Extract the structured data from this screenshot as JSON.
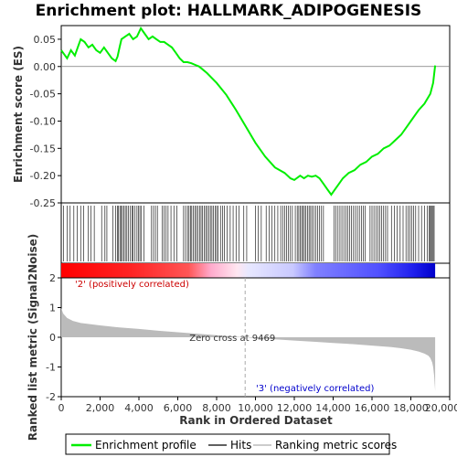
{
  "chart_data": {
    "type": "line",
    "title": "Enrichment plot: HALLMARK_ADIPOGENESIS",
    "upper_panel": {
      "ylabel": "Enrichment score (ES)",
      "ylim": [
        -0.25,
        0.075
      ],
      "yticks": [
        "0.05",
        "0.00",
        "-0.05",
        "-0.10",
        "-0.15",
        "-0.20",
        "-0.25"
      ],
      "ytick_values": [
        0.05,
        0.0,
        -0.05,
        -0.1,
        -0.15,
        -0.2,
        -0.25
      ],
      "series": [
        {
          "name": "Enrichment profile",
          "color": "#00ee00",
          "x": [
            0,
            300,
            500,
            700,
            900,
            1000,
            1200,
            1400,
            1600,
            1800,
            2000,
            2200,
            2400,
            2600,
            2800,
            2900,
            3000,
            3100,
            3300,
            3500,
            3700,
            3900,
            4100,
            4300,
            4500,
            4700,
            4900,
            5100,
            5300,
            5500,
            5700,
            5900,
            6100,
            6300,
            6500,
            6700,
            6900,
            7100,
            7500,
            8000,
            8500,
            9000,
            9500,
            10000,
            10500,
            11000,
            11500,
            11800,
            12000,
            12300,
            12500,
            12700,
            12900,
            13100,
            13300,
            13500,
            13700,
            13900,
            14100,
            14300,
            14500,
            14800,
            15100,
            15400,
            15700,
            16000,
            16300,
            16600,
            16900,
            17200,
            17500,
            17800,
            18100,
            18400,
            18700,
            19000,
            19150,
            19250
          ],
          "y": [
            0.03,
            0.015,
            0.03,
            0.02,
            0.04,
            0.05,
            0.045,
            0.035,
            0.04,
            0.03,
            0.025,
            0.035,
            0.025,
            0.015,
            0.01,
            0.018,
            0.035,
            0.05,
            0.055,
            0.06,
            0.05,
            0.055,
            0.07,
            0.06,
            0.05,
            0.055,
            0.05,
            0.045,
            0.045,
            0.04,
            0.035,
            0.025,
            0.015,
            0.008,
            0.008,
            0.006,
            0.003,
            0.0,
            -0.012,
            -0.03,
            -0.052,
            -0.08,
            -0.11,
            -0.14,
            -0.165,
            -0.185,
            -0.195,
            -0.205,
            -0.208,
            -0.2,
            -0.205,
            -0.2,
            -0.202,
            -0.2,
            -0.205,
            -0.215,
            -0.225,
            -0.235,
            -0.225,
            -0.215,
            -0.205,
            -0.195,
            -0.19,
            -0.18,
            -0.175,
            -0.165,
            -0.16,
            -0.15,
            -0.145,
            -0.135,
            -0.125,
            -0.11,
            -0.095,
            -0.08,
            -0.068,
            -0.05,
            -0.03,
            0.002
          ]
        }
      ]
    },
    "hits_x": [
      120,
      300,
      460,
      650,
      820,
      1000,
      1150,
      1380,
      1520,
      1700,
      2080,
      2250,
      2350,
      2650,
      2800,
      2900,
      2950,
      3020,
      3080,
      3150,
      3220,
      3300,
      3380,
      3450,
      3550,
      3640,
      3700,
      3800,
      3900,
      3980,
      4050,
      4130,
      4250,
      4650,
      4750,
      4850,
      4950,
      5200,
      5300,
      5400,
      5500,
      5650,
      5800,
      5950,
      6300,
      6400,
      6500,
      6580,
      6650,
      6720,
      6800,
      6880,
      6960,
      7040,
      7120,
      7200,
      7280,
      7360,
      7440,
      7520,
      7600,
      7680,
      7760,
      7840,
      7920,
      8000,
      8080,
      8200,
      8300,
      8400,
      8550,
      8700,
      8850,
      9000,
      9150,
      9400,
      9550,
      10000,
      10150,
      10300,
      10550,
      10700,
      10850,
      11000,
      11150,
      11300,
      11400,
      11500,
      11600,
      11700,
      11800,
      11900,
      12050,
      12150,
      12230,
      12300,
      12380,
      12450,
      12520,
      12600,
      12680,
      12760,
      12840,
      12920,
      13000,
      13100,
      13200,
      13300,
      13400,
      13500,
      14050,
      14150,
      14250,
      14350,
      14450,
      14550,
      14650,
      14750,
      14850,
      14950,
      15050,
      15150,
      15250,
      15350,
      15450,
      15550,
      15650,
      15900,
      16000,
      16100,
      16200,
      16300,
      16400,
      16500,
      16600,
      16700,
      16800,
      17000,
      17150,
      17300,
      17450,
      17600,
      17750,
      17850,
      17950,
      18050,
      18150,
      18250,
      18400,
      18550,
      18700,
      18850,
      18950,
      19000,
      19050,
      19100,
      19150,
      19200
    ],
    "ranked_panel": {
      "ylabel": "Ranked list metric (Signal2Noise)",
      "ylim": [
        -2,
        2
      ],
      "yticks": [
        "2",
        "1",
        "0",
        "-1",
        "-2"
      ],
      "ytick_values": [
        2,
        1,
        0,
        -1,
        -2
      ],
      "metric_x": [
        0,
        100,
        300,
        600,
        1000,
        2000,
        3000,
        4000,
        5000,
        6000,
        7000,
        8000,
        9000,
        9469,
        10000,
        11000,
        12000,
        13000,
        14000,
        15000,
        16000,
        17000,
        17500,
        18000,
        18400,
        18700,
        18900,
        19000,
        19100,
        19150,
        19200,
        19250
      ],
      "metric_y": [
        0.98,
        0.8,
        0.65,
        0.55,
        0.48,
        0.4,
        0.33,
        0.28,
        0.22,
        0.17,
        0.12,
        0.07,
        0.02,
        0.0,
        -0.03,
        -0.07,
        -0.11,
        -0.15,
        -0.19,
        -0.23,
        -0.28,
        -0.33,
        -0.37,
        -0.42,
        -0.48,
        -0.55,
        -0.62,
        -0.7,
        -0.85,
        -1.0,
        -1.3,
        -1.8
      ],
      "zero_cross_label": "Zero cross at 9469",
      "zero_cross": 9469,
      "pos_label": "'2' (positively correlated)",
      "neg_label": "'3' (negatively correlated)"
    },
    "xlabel": "Rank in Ordered Dataset",
    "xlim": [
      0,
      20000
    ],
    "xticks": [
      "0",
      "2,000",
      "4,000",
      "6,000",
      "8,000",
      "10,000",
      "12,000",
      "14,000",
      "16,000",
      "18,000",
      "20,000"
    ],
    "xtick_values": [
      0,
      2000,
      4000,
      6000,
      8000,
      10000,
      12000,
      14000,
      16000,
      18000,
      20000
    ],
    "dataset_size": 19250,
    "legend": {
      "placement": "bottom",
      "items": [
        {
          "label": "Enrichment profile",
          "color": "#00ee00"
        },
        {
          "label": "Hits",
          "color": "#000000"
        },
        {
          "label": "Ranking metric scores",
          "color": "#bbbbbb"
        }
      ]
    },
    "colors": {
      "positive_band": "#ff0000",
      "negative_band": "#0000ff",
      "pos_label": "#cc0000",
      "neg_label": "#0000cc",
      "metric_fill": "#bbbbbb"
    }
  }
}
